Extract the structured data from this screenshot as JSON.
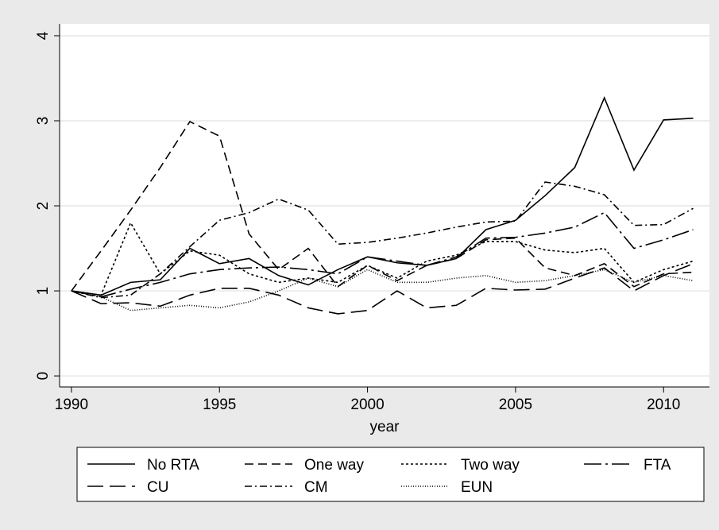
{
  "chart_data": {
    "type": "line",
    "x": [
      1990,
      1991,
      1992,
      1993,
      1994,
      1995,
      1996,
      1997,
      1998,
      1999,
      2000,
      2001,
      2002,
      2003,
      2004,
      2005,
      2006,
      2007,
      2008,
      2009,
      2010,
      2011
    ],
    "xlabel": "year",
    "xlim": [
      1989.6,
      2011.55
    ],
    "xticks": [
      1990,
      1995,
      2000,
      2005,
      2010
    ],
    "ylim": [
      -0.13,
      4.14
    ],
    "yticks": [
      0,
      1,
      2,
      3,
      4
    ],
    "grid": true,
    "series": [
      {
        "name": "No RTA",
        "color": "#000000",
        "dash": "none",
        "values": [
          1,
          0.95,
          1.1,
          1.13,
          1.5,
          1.32,
          1.38,
          1.18,
          1.07,
          1.25,
          1.4,
          1.33,
          1.3,
          1.38,
          1.72,
          1.83,
          2.12,
          2.45,
          3.27,
          2.42,
          3.01,
          3.03
        ]
      },
      {
        "name": "One way",
        "color": "#000000",
        "dash": "11,6",
        "values": [
          1,
          1.47,
          1.95,
          2.45,
          2.99,
          2.82,
          1.67,
          1.25,
          1.5,
          1.05,
          1.3,
          1.12,
          1.3,
          1.38,
          1.6,
          1.62,
          1.27,
          1.18,
          1.32,
          1.05,
          1.2,
          1.22
        ]
      },
      {
        "name": "Two way",
        "color": "#000000",
        "dash": "3,3",
        "values": [
          1,
          0.95,
          1.8,
          1.2,
          1.47,
          1.42,
          1.2,
          1.1,
          1.15,
          1.1,
          1.3,
          1.15,
          1.35,
          1.42,
          1.58,
          1.58,
          1.48,
          1.45,
          1.5,
          1.1,
          1.25,
          1.35
        ]
      },
      {
        "name": "FTA",
        "color": "#000000",
        "dash": "22,5,3,5",
        "values": [
          1,
          0.93,
          1.02,
          1.1,
          1.2,
          1.25,
          1.27,
          1.28,
          1.25,
          1.2,
          1.4,
          1.35,
          1.3,
          1.4,
          1.62,
          1.63,
          1.68,
          1.75,
          1.92,
          1.5,
          1.6,
          1.72
        ]
      },
      {
        "name": "CU",
        "color": "#000000",
        "dash": "20,8",
        "values": [
          1,
          0.85,
          0.86,
          0.82,
          0.95,
          1.03,
          1.03,
          0.95,
          0.8,
          0.73,
          0.77,
          1.0,
          0.8,
          0.83,
          1.03,
          1.01,
          1.02,
          1.15,
          1.27,
          1.0,
          1.18,
          1.32
        ]
      },
      {
        "name": "CM",
        "color": "#000000",
        "dash": "9,4,2,4",
        "values": [
          1,
          0.92,
          0.95,
          1.2,
          1.52,
          1.83,
          1.92,
          2.08,
          1.95,
          1.55,
          1.57,
          1.62,
          1.68,
          1.75,
          1.81,
          1.82,
          2.28,
          2.23,
          2.13,
          1.77,
          1.78,
          1.97
        ]
      },
      {
        "name": "EUN",
        "color": "#000000",
        "dash": "1,2",
        "values": [
          1,
          0.93,
          0.77,
          0.8,
          0.83,
          0.8,
          0.87,
          1.0,
          1.15,
          1.05,
          1.25,
          1.1,
          1.1,
          1.15,
          1.18,
          1.1,
          1.12,
          1.18,
          1.25,
          1.1,
          1.18,
          1.12
        ]
      }
    ]
  }
}
